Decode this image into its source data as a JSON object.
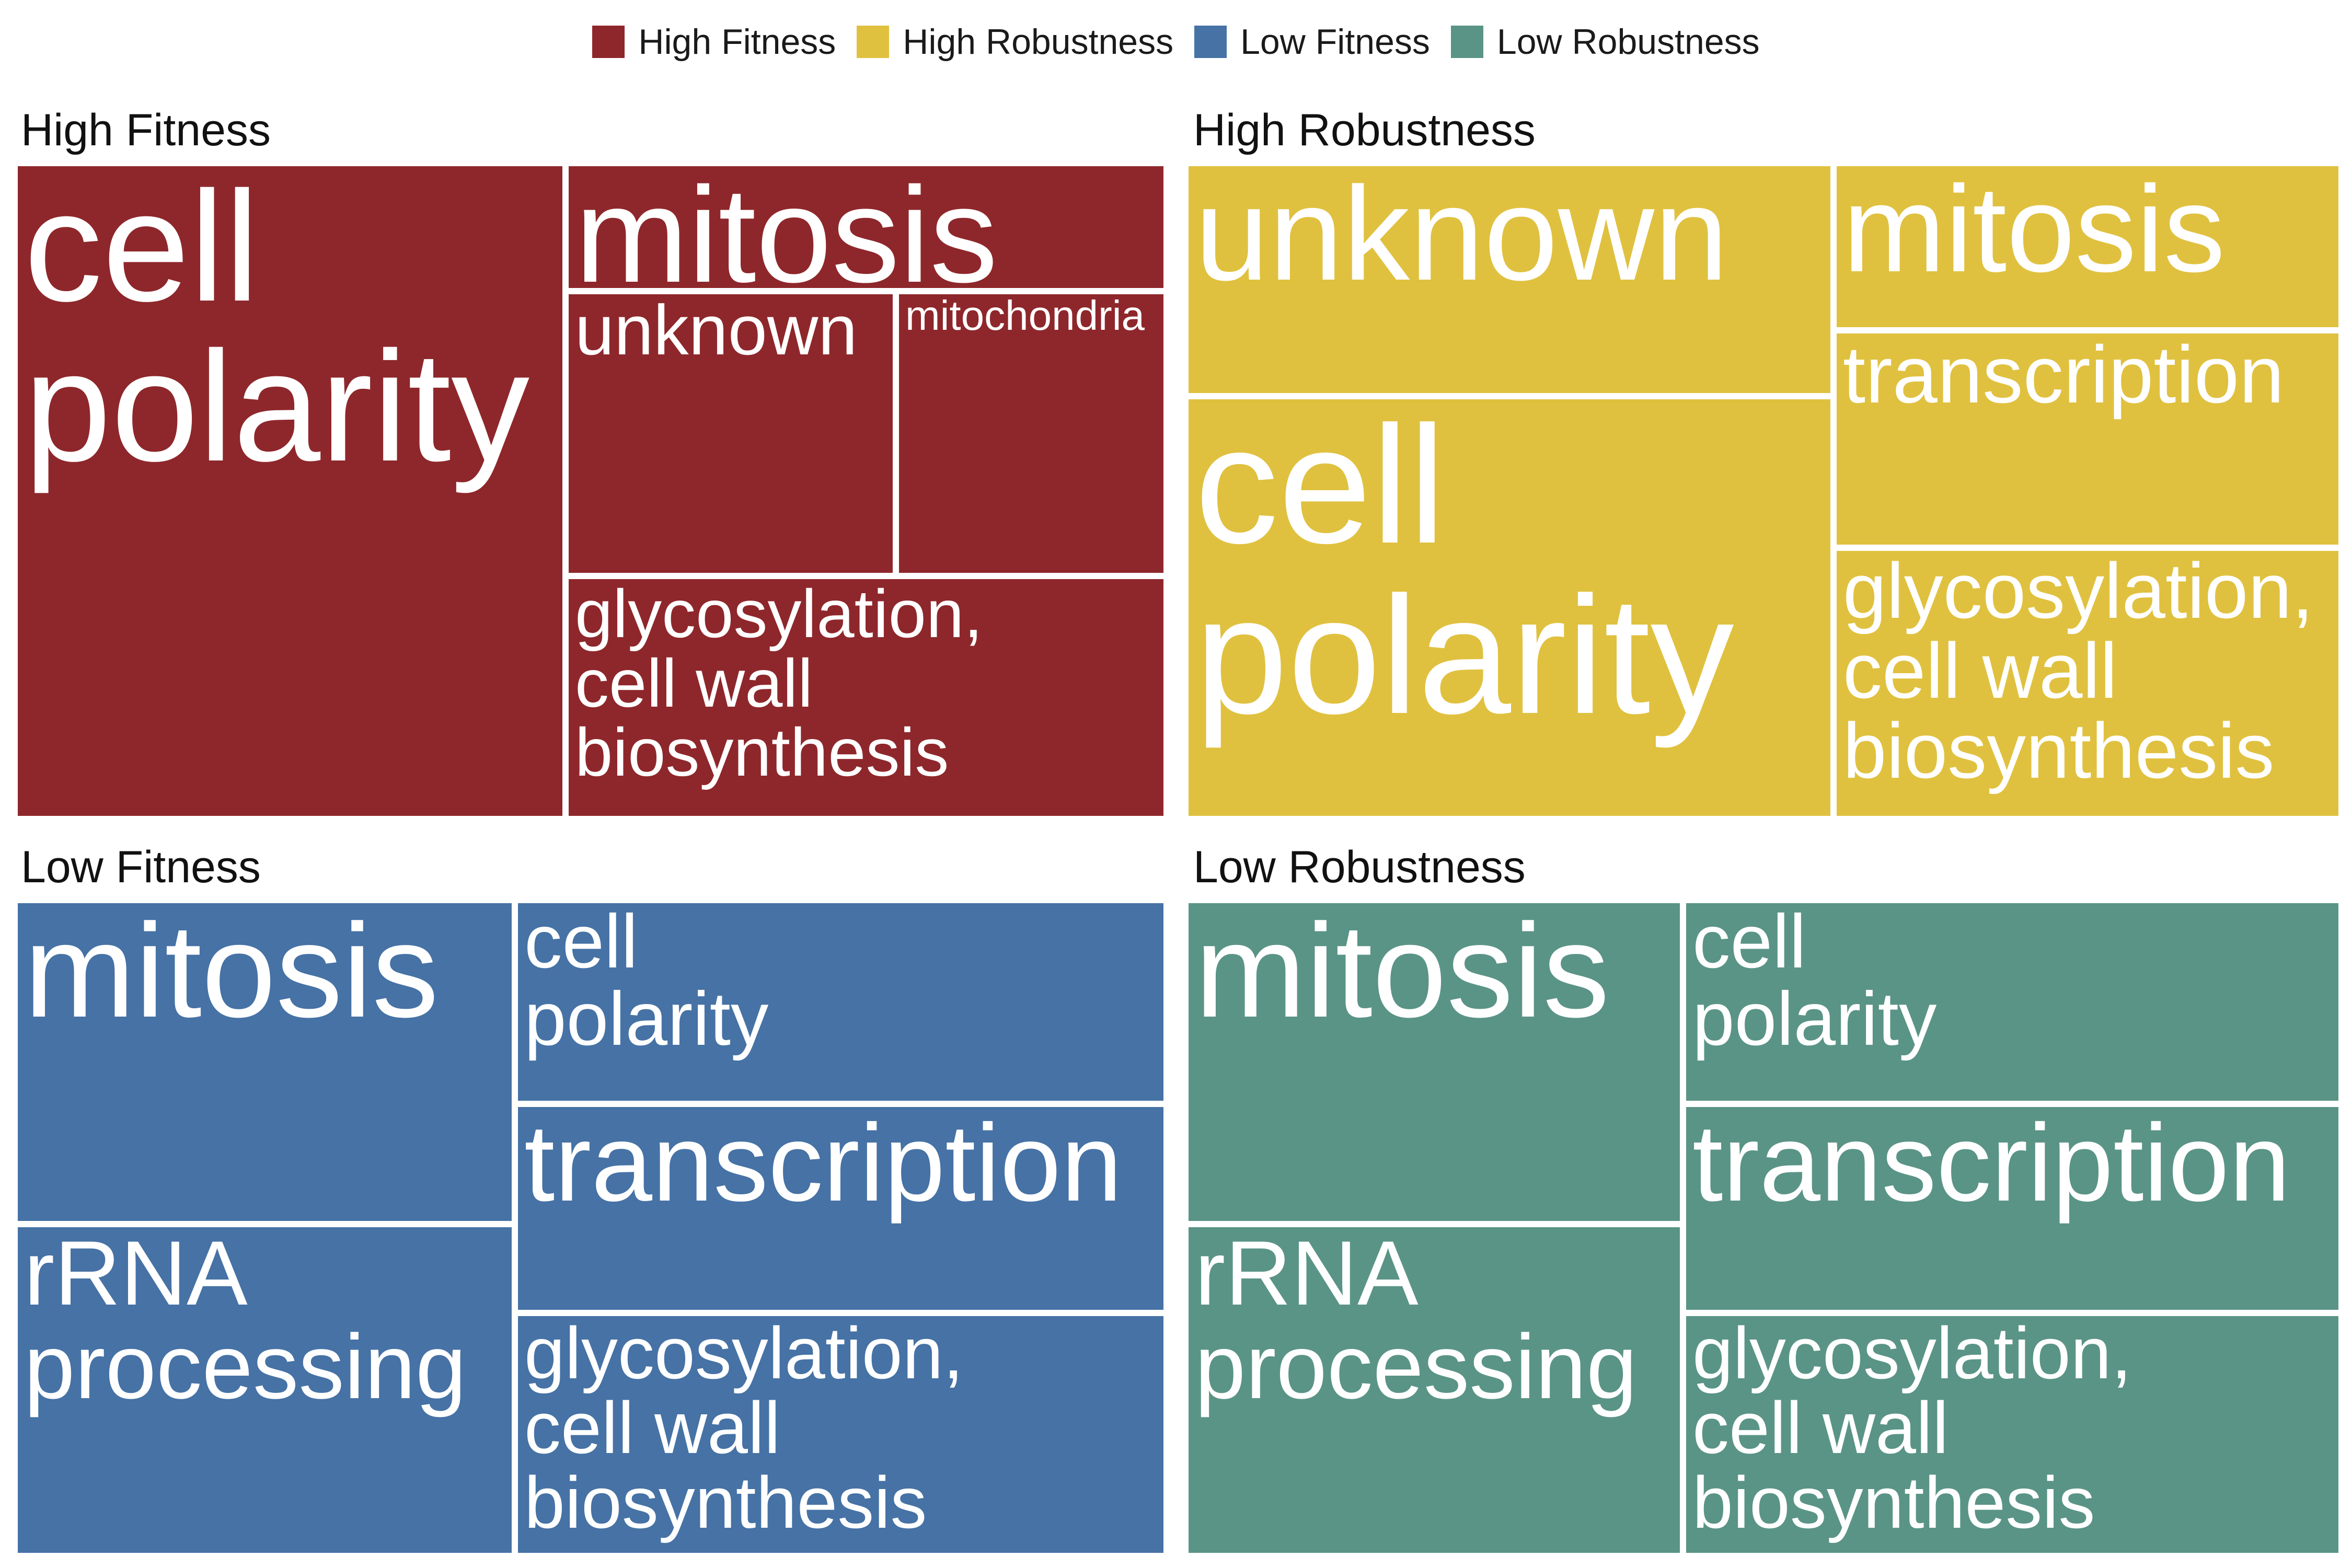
{
  "legend": [
    {
      "label": "High Fitness",
      "color": "#8E272B"
    },
    {
      "label": "High Robustness",
      "color": "#E0C13F"
    },
    {
      "label": "Low Fitness",
      "color": "#4672A5"
    },
    {
      "label": "Low Robustness",
      "color": "#5A9486"
    }
  ],
  "chart_data": [
    {
      "type": "treemap",
      "title": "High Fitness",
      "color": "#8E272B",
      "tiles": [
        {
          "label": "cell polarity",
          "lines": [
            "cell",
            "polarity"
          ]
        },
        {
          "label": "mitosis",
          "lines": [
            "mitosis"
          ]
        },
        {
          "label": "unknown",
          "lines": [
            "unknown"
          ]
        },
        {
          "label": "mitochondria",
          "lines": [
            "mitochondria"
          ]
        },
        {
          "label": "glycosylation, cell wall biosynthesis",
          "lines": [
            "glycosylation,",
            "cell wall",
            "biosynthesis"
          ]
        }
      ]
    },
    {
      "type": "treemap",
      "title": "High Robustness",
      "color": "#E0C13F",
      "tiles": [
        {
          "label": "unknown",
          "lines": [
            "unknown"
          ]
        },
        {
          "label": "cell polarity",
          "lines": [
            "cell",
            "polarity"
          ]
        },
        {
          "label": "mitosis",
          "lines": [
            "mitosis"
          ]
        },
        {
          "label": "transcription",
          "lines": [
            "transcription"
          ]
        },
        {
          "label": "glycosylation, cell wall biosynthesis",
          "lines": [
            "glycosylation,",
            "cell wall",
            "biosynthesis"
          ]
        }
      ]
    },
    {
      "type": "treemap",
      "title": "Low Fitness",
      "color": "#4672A5",
      "tiles": [
        {
          "label": "mitosis",
          "lines": [
            "mitosis"
          ]
        },
        {
          "label": "rRNA processing",
          "lines": [
            "rRNA",
            "processing"
          ]
        },
        {
          "label": "cell polarity",
          "lines": [
            "cell",
            "polarity"
          ]
        },
        {
          "label": "transcription",
          "lines": [
            "transcription"
          ]
        },
        {
          "label": "glycosylation, cell wall biosynthesis",
          "lines": [
            "glycosylation,",
            "cell wall",
            "biosynthesis"
          ]
        }
      ]
    },
    {
      "type": "treemap",
      "title": "Low Robustness",
      "color": "#5A9486",
      "tiles": [
        {
          "label": "mitosis",
          "lines": [
            "mitosis"
          ]
        },
        {
          "label": "rRNA processing",
          "lines": [
            "rRNA",
            "processing"
          ]
        },
        {
          "label": "cell polarity",
          "lines": [
            "cell",
            "polarity"
          ]
        },
        {
          "label": "transcription",
          "lines": [
            "transcription"
          ]
        },
        {
          "label": "glycosylation, cell wall biosynthesis",
          "lines": [
            "glycosylation,",
            "cell wall",
            "biosynthesis"
          ]
        }
      ]
    }
  ]
}
